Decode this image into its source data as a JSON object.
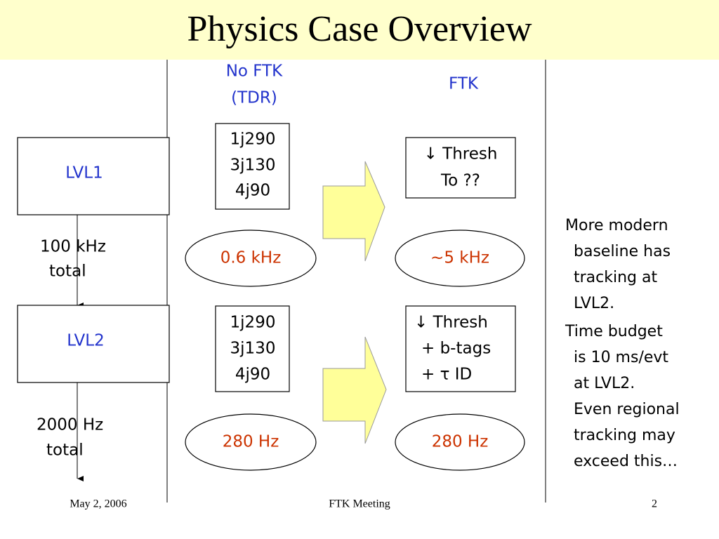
{
  "title": "Physics Case Overview",
  "headers": {
    "no_ftk": [
      "No FTK",
      "(TDR)"
    ],
    "ftk": [
      "FTK"
    ]
  },
  "levels": [
    {
      "label": "LVL1",
      "rate": [
        "100 kHz",
        "total"
      ]
    },
    {
      "label": "LVL2",
      "rate": [
        "2000 Hz",
        "total"
      ]
    }
  ],
  "no_ftk": [
    {
      "triggers": [
        "1j290",
        "3j130",
        "4j90"
      ],
      "rate": "0.6 kHz"
    },
    {
      "triggers": [
        "1j290",
        "3j130",
        "4j90"
      ],
      "rate": "280 Hz"
    }
  ],
  "ftk": [
    {
      "changes": [
        "↓ Thresh",
        "To ??"
      ],
      "rate": "~5 kHz"
    },
    {
      "changes": [
        "↓ Thresh",
        "+ b-tags",
        "+ τ ID"
      ],
      "rate": "280 Hz"
    }
  ],
  "notes": [
    [
      "More modern",
      "baseline has",
      "tracking at",
      "LVL2."
    ],
    [
      "Time budget",
      "is 10 ms/evt",
      "at LVL2.",
      "Even regional",
      "tracking may",
      "exceed this…"
    ]
  ],
  "footer": {
    "date": "May 2, 2006",
    "meeting": "FTK Meeting",
    "page": "2"
  }
}
